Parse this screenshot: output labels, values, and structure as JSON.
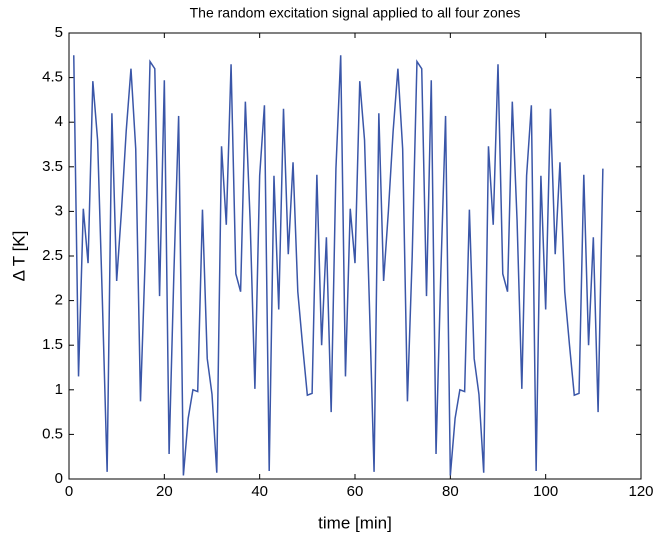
{
  "chart_data": {
    "type": "line",
    "title": "The random excitation signal applied to all four zones",
    "x_label": "time [min]",
    "y_label": "Δ T [K]",
    "x": [
      1,
      2,
      3,
      4,
      5,
      6,
      7,
      8,
      9,
      10,
      11,
      12,
      13,
      14,
      15,
      16,
      17,
      18,
      19,
      20,
      21,
      22,
      23,
      24,
      25,
      26,
      27,
      28,
      29,
      30,
      31,
      32,
      33,
      34,
      35,
      36,
      37,
      38,
      39,
      40,
      41,
      42,
      43,
      44,
      45,
      46,
      47,
      48,
      49,
      50,
      51,
      52,
      53,
      54,
      55,
      56,
      57,
      58,
      59,
      60,
      61,
      62,
      63,
      64,
      65,
      66,
      67,
      68,
      69,
      70,
      71,
      72,
      73,
      74,
      75,
      76,
      77,
      78,
      79,
      80,
      81,
      82,
      83,
      84,
      85,
      86,
      87,
      88,
      89,
      90,
      91,
      92,
      93,
      94,
      95,
      96,
      97,
      98,
      99,
      100,
      101,
      102,
      103,
      104,
      105,
      106,
      107,
      108,
      109,
      110,
      111,
      112
    ],
    "series": [
      {
        "color": "#3a56a8",
        "values": [
          4.75,
          1.15,
          3.03,
          2.42,
          4.46,
          3.8,
          2.0,
          0.08,
          4.1,
          2.22,
          3.0,
          3.9,
          4.6,
          3.7,
          0.87,
          2.5,
          4.68,
          4.6,
          2.05,
          4.47,
          0.28,
          2.3,
          4.07,
          0.04,
          0.68,
          1.0,
          0.98,
          3.02,
          1.35,
          0.95,
          0.07,
          3.73,
          2.85,
          4.65,
          2.3,
          2.1,
          4.23,
          2.9,
          1.01,
          3.4,
          4.19,
          0.09,
          3.4,
          1.9,
          4.15,
          2.52,
          3.55,
          2.1,
          1.5,
          0.94,
          0.96,
          3.41,
          1.5,
          2.71,
          0.75,
          3.48,
          4.75,
          1.15,
          3.03,
          2.42,
          4.46,
          3.8,
          2.0,
          0.08,
          4.1,
          2.22,
          3.0,
          3.9,
          4.6,
          3.7,
          0.87,
          2.5,
          4.68,
          4.6,
          2.05,
          4.47,
          0.28,
          2.3,
          4.07,
          0.04,
          0.68,
          1.0,
          0.98,
          3.02,
          1.35,
          0.95,
          0.07,
          3.73,
          2.85,
          4.65,
          2.3,
          2.1,
          4.23,
          2.9,
          1.01,
          3.4,
          4.19,
          0.09,
          3.4,
          1.9,
          4.15,
          2.52,
          3.55,
          2.1,
          1.5,
          0.94,
          0.96,
          3.41,
          1.5,
          2.71,
          0.75,
          3.48
        ]
      }
    ],
    "xlim": [
      0,
      120
    ],
    "xticks": [
      0,
      20,
      40,
      60,
      80,
      100,
      120
    ],
    "ylim": [
      0,
      5
    ],
    "yticks": [
      0,
      0.5,
      1,
      1.5,
      2,
      2.5,
      3,
      3.5,
      4,
      4.5,
      5
    ],
    "grid": false
  }
}
